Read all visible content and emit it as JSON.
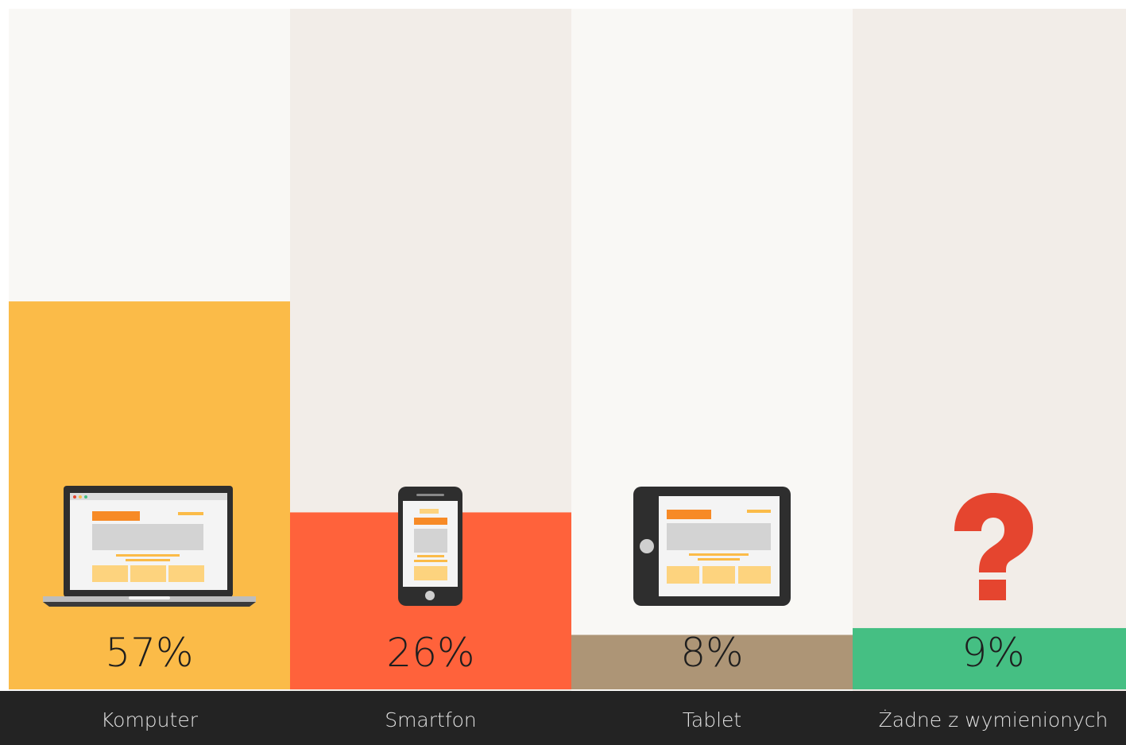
{
  "chart_data": {
    "type": "bar",
    "categories": [
      "Komputer",
      "Smartfon",
      "Tablet",
      "Żadne z wymienionych"
    ],
    "values": [
      57,
      26,
      8,
      9
    ],
    "value_labels": [
      "57%",
      "26%",
      "8%",
      "9%"
    ],
    "colors": [
      "#fbbb48",
      "#ff623b",
      "#ad9576",
      "#45bf83"
    ],
    "ylim": [
      0,
      100
    ]
  }
}
